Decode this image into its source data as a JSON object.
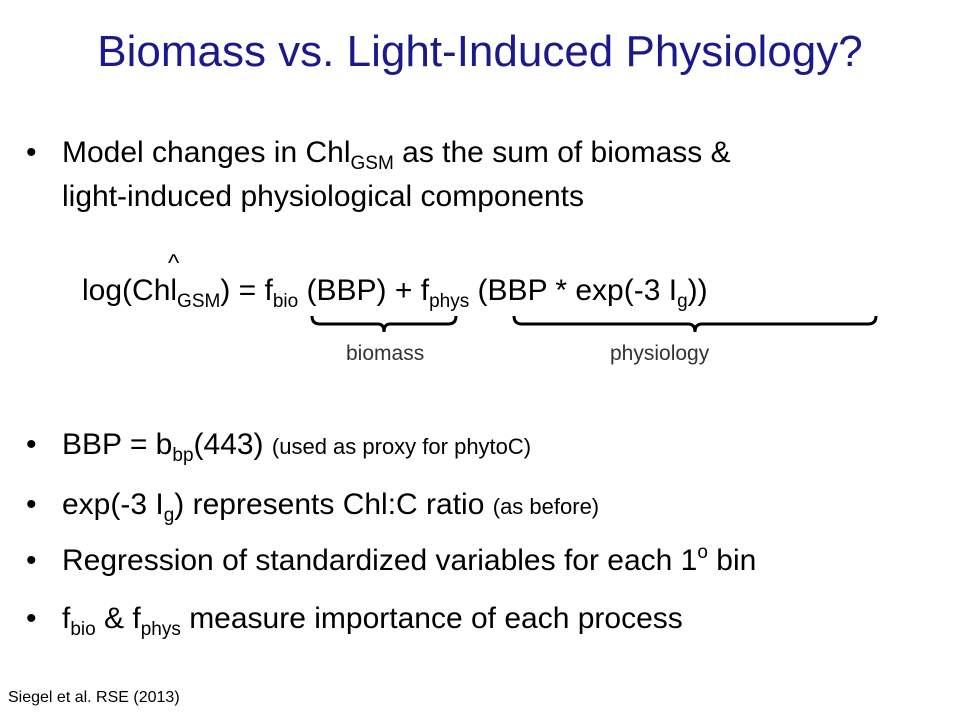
{
  "title": "Biomass vs. Light-Induced Physiology?",
  "bullet_char": "•",
  "intro": {
    "line1_pre": "Model changes in Chl",
    "line1_sub": "GSM",
    "line1_post": " as the sum of biomass &",
    "line2": "light-induced physiological components"
  },
  "equation": {
    "hat": "^",
    "lhs_pre": "log(Chl",
    "lhs_sub": "GSM",
    "lhs_post": ") = f",
    "fbio_sub": "bio",
    "term1": " (BBP) +  f",
    "fphys_sub": "phys",
    "term2": " (BBP * exp(-3 I",
    "ig_sub": "g",
    "term2_end": "))",
    "label_biomass": "biomass",
    "label_physiology": "physiology"
  },
  "bullets": [
    {
      "pre": "BBP = b",
      "sub": "bp",
      "post": "(443) ",
      "small": "(used as proxy for phytoC)"
    },
    {
      "pre": "exp(-3 I",
      "sub": "g",
      "post": ") represents Chl:C ratio ",
      "small": "(as before)"
    },
    {
      "pre": "Regression of standardized variables for each 1",
      "sup": "o",
      "post": " bin"
    },
    {
      "pre": "f",
      "sub": "bio",
      "mid": " & f",
      "sub2": "phys",
      "post": " measure importance of each process"
    }
  ],
  "citation": "Siegel et al. RSE (2013)"
}
